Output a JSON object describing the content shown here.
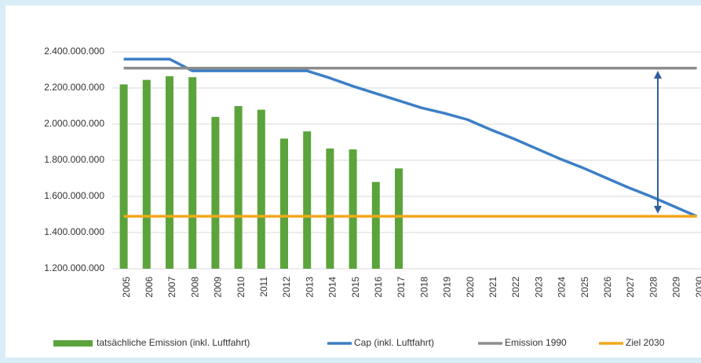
{
  "chart_data": {
    "type": "bar",
    "categories": [
      "2005",
      "2006",
      "2007",
      "2008",
      "2009",
      "2010",
      "2011",
      "2012",
      "2013",
      "2014",
      "2015",
      "2016",
      "2017",
      "2018",
      "2019",
      "2020",
      "2021",
      "2022",
      "2023",
      "2024",
      "2025",
      "2026",
      "2027",
      "2028",
      "2029",
      "2030"
    ],
    "series": [
      {
        "name": "tatsächliche Emission (inkl. Luftfahrt)",
        "type": "bar",
        "color": "#5ba33b",
        "values": [
          2220000000,
          2245000000,
          2265000000,
          2260000000,
          2040000000,
          2100000000,
          2080000000,
          1920000000,
          1960000000,
          1865000000,
          1860000000,
          1680000000,
          1755000000,
          null,
          null,
          null,
          null,
          null,
          null,
          null,
          null,
          null,
          null,
          null,
          null,
          null
        ]
      },
      {
        "name": "Cap (inkl. Luftfahrt)",
        "type": "line",
        "color": "#3d7fc6",
        "values": [
          2360000000,
          2360000000,
          2360000000,
          2295000000,
          2295000000,
          2295000000,
          2295000000,
          2295000000,
          2295000000,
          2255000000,
          2210000000,
          2170000000,
          2130000000,
          2090000000,
          2060000000,
          2025000000,
          1970000000,
          1920000000,
          1865000000,
          1810000000,
          1760000000,
          1705000000,
          1650000000,
          1600000000,
          1545000000,
          1490000000
        ]
      },
      {
        "name": "Emission 1990",
        "type": "line",
        "color": "#8c8c8c",
        "values": [
          2310000000,
          2310000000,
          2310000000,
          2310000000,
          2310000000,
          2310000000,
          2310000000,
          2310000000,
          2310000000,
          2310000000,
          2310000000,
          2310000000,
          2310000000,
          2310000000,
          2310000000,
          2310000000,
          2310000000,
          2310000000,
          2310000000,
          2310000000,
          2310000000,
          2310000000,
          2310000000,
          2310000000,
          2310000000,
          2310000000
        ]
      },
      {
        "name": "Ziel 2030",
        "type": "line",
        "color": "#f2a81d",
        "values": [
          1490000000,
          1490000000,
          1490000000,
          1490000000,
          1490000000,
          1490000000,
          1490000000,
          1490000000,
          1490000000,
          1490000000,
          1490000000,
          1490000000,
          1490000000,
          1490000000,
          1490000000,
          1490000000,
          1490000000,
          1490000000,
          1490000000,
          1490000000,
          1490000000,
          1490000000,
          1490000000,
          1490000000,
          1490000000,
          1490000000
        ]
      }
    ],
    "ylim": [
      1200000000,
      2400000000
    ],
    "yticks": [
      {
        "value": 1200000000,
        "label": "1.200.000.000"
      },
      {
        "value": 1400000000,
        "label": "1.400.000.000"
      },
      {
        "value": 1600000000,
        "label": "1.600.000.000"
      },
      {
        "value": 1800000000,
        "label": "1.800.000.000"
      },
      {
        "value": 2000000000,
        "label": "2.000.000.000"
      },
      {
        "value": 2200000000,
        "label": "2.200.000.000"
      },
      {
        "value": 2400000000,
        "label": "2.400.000.000"
      }
    ],
    "grid": true,
    "legend": "bottom"
  }
}
